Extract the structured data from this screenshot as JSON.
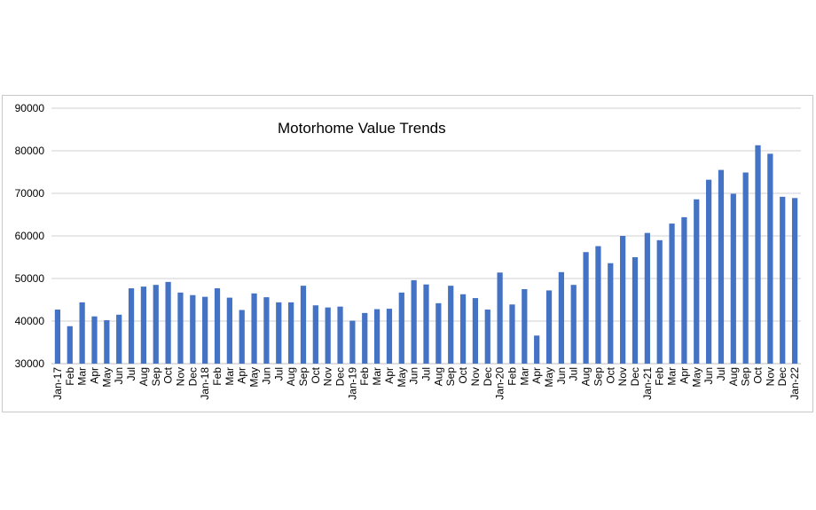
{
  "chart_data": {
    "type": "bar",
    "title": "Motorhome Value Trends",
    "xlabel": "",
    "ylabel": "",
    "ylim": [
      30000,
      90000
    ],
    "yticks": [
      30000,
      40000,
      50000,
      60000,
      70000,
      80000,
      90000
    ],
    "grid": true,
    "legend": "none",
    "bar_color": "#4472C4",
    "categories": [
      "Jan-17",
      "Feb",
      "Mar",
      "Apr",
      "May",
      "Jun",
      "Jul",
      "Aug",
      "Sep",
      "Oct",
      "Nov",
      "Dec",
      "Jan-18",
      "Feb",
      "Mar",
      "Apr",
      "May",
      "Jun",
      "Jul",
      "Aug",
      "Sep",
      "Oct",
      "Nov",
      "Dec",
      "Jan-19",
      "Feb",
      "Mar",
      "Apr",
      "May",
      "Jun",
      "Jul",
      "Aug",
      "Sep",
      "Oct",
      "Nov",
      "Dec",
      "Jan-20",
      "Feb",
      "Mar",
      "Apr",
      "May",
      "Jun",
      "Jul",
      "Aug",
      "Sep",
      "Oct",
      "Nov",
      "Dec",
      "Jan-21",
      "Feb",
      "Mar",
      "Apr",
      "May",
      "Jun",
      "Jul",
      "Aug",
      "Sep",
      "Oct",
      "Nov",
      "Dec",
      "Jan-22"
    ],
    "values": [
      42700,
      38800,
      44400,
      41100,
      40200,
      41500,
      47700,
      48100,
      48500,
      49200,
      46700,
      46100,
      45700,
      47700,
      45500,
      42600,
      46500,
      45600,
      44400,
      44400,
      48300,
      43700,
      43200,
      43400,
      40100,
      41900,
      42800,
      42900,
      46700,
      49600,
      48600,
      44200,
      48300,
      46300,
      45400,
      42700,
      51400,
      43900,
      47500,
      36600,
      47200,
      51500,
      48500,
      56200,
      57600,
      53600,
      60000,
      55000,
      60700,
      59000,
      62900,
      64400,
      68600,
      73200,
      75500,
      69900,
      74900,
      81300,
      79300,
      69200,
      68900
    ]
  }
}
